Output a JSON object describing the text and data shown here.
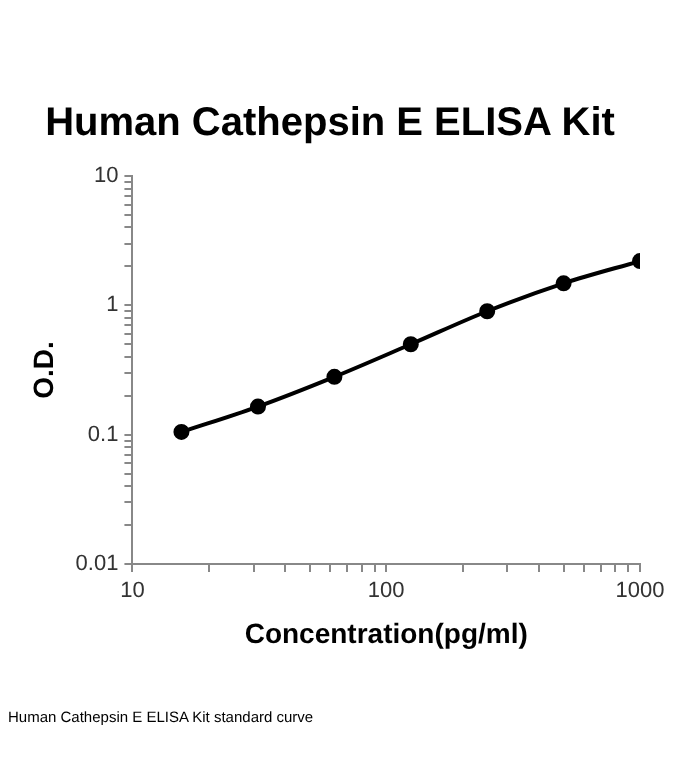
{
  "chart_data": {
    "type": "line",
    "title": "Human Cathepsin E ELISA Kit",
    "xlabel": "Concentration(pg/ml)",
    "ylabel": "O.D.",
    "x": [
      15.6,
      31.25,
      62.5,
      125,
      250,
      500,
      1000
    ],
    "series": [
      {
        "color": "#000000",
        "values": [
          0.105,
          0.165,
          0.28,
          0.5,
          0.9,
          1.48,
          2.2
        ]
      }
    ],
    "log": "xy",
    "xlim": [
      10,
      1000
    ],
    "ylim": [
      0.01,
      10
    ],
    "xticks": [
      10,
      {
        "value": 20,
        "label": null
      },
      {
        "value": 30,
        "label": null
      },
      {
        "value": 40,
        "label": null
      },
      {
        "value": 50,
        "label": null
      },
      {
        "value": 60,
        "label": null
      },
      {
        "value": 70,
        "label": null
      },
      {
        "value": 80,
        "label": null
      },
      {
        "value": 90,
        "label": null
      },
      100,
      {
        "value": 200,
        "label": null
      },
      {
        "value": 300,
        "label": null
      },
      {
        "value": 400,
        "label": null
      },
      {
        "value": 500,
        "label": null
      },
      {
        "value": 600,
        "label": null
      },
      {
        "value": 700,
        "label": null
      },
      {
        "value": 800,
        "label": null
      },
      {
        "value": 900,
        "label": null
      },
      1000
    ],
    "yticks": [
      0.01,
      {
        "value": 0.02,
        "label": null
      },
      {
        "value": 0.03,
        "label": null
      },
      {
        "value": 0.04,
        "label": null
      },
      {
        "value": 0.05,
        "label": null
      },
      {
        "value": 0.06,
        "label": null
      },
      {
        "value": 0.07,
        "label": null
      },
      {
        "value": 0.08,
        "label": null
      },
      {
        "value": 0.09,
        "label": null
      },
      0.1,
      {
        "value": 0.2,
        "label": null
      },
      {
        "value": 0.3,
        "label": null
      },
      {
        "value": 0.4,
        "label": null
      },
      {
        "value": 0.5,
        "label": null
      },
      {
        "value": 0.6,
        "label": null
      },
      {
        "value": 0.7,
        "label": null
      },
      {
        "value": 0.8,
        "label": null
      },
      {
        "value": 0.9,
        "label": null
      },
      1,
      {
        "value": 2,
        "label": null
      },
      {
        "value": 3,
        "label": null
      },
      {
        "value": 4,
        "label": null
      },
      {
        "value": 5,
        "label": null
      },
      {
        "value": 6,
        "label": null
      },
      {
        "value": 7,
        "label": null
      },
      {
        "value": 8,
        "label": null
      },
      {
        "value": 9,
        "label": null
      },
      10
    ],
    "grid": false,
    "legend": false,
    "marker": "circle",
    "line_style": "solid",
    "annotations": [
      "Human Cathepsin E ELISA Kit standard curve"
    ]
  }
}
